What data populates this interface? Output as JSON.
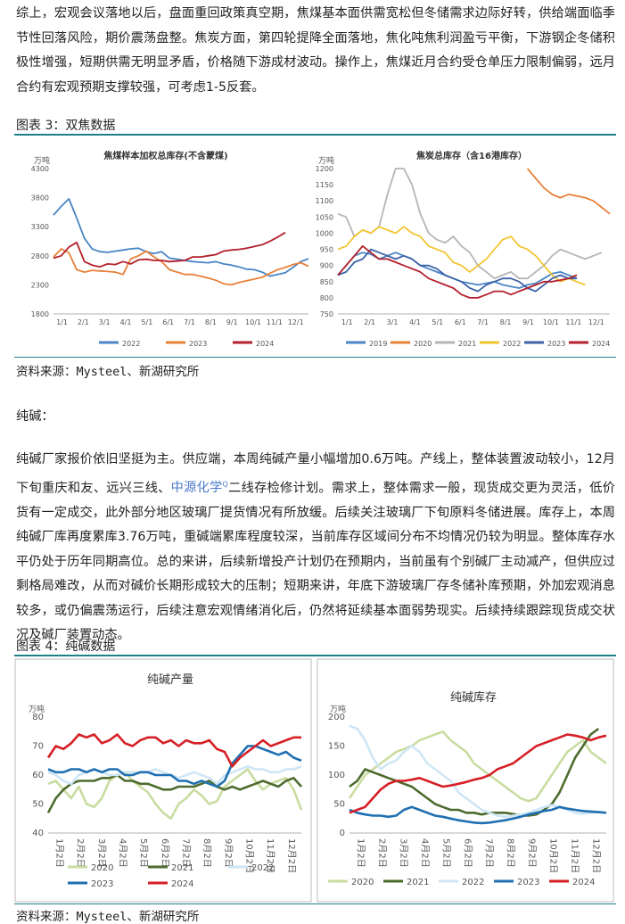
{
  "intro_paragraph": "综上，宏观会议落地以后，盘面重回政策真空期，焦煤基本面供需宽松但冬储需求边际好转，供给端面临季节性回落风险，期价震荡盘整。焦炭方面，第四轮提降全面落地，焦化吨焦利润盈亏平衡，下游钢企冬储积极性增强，短期供需无明显矛盾，价格随下游成材波动。操作上，焦煤近月合约受仓单压力限制偏弱，远月合约有宏观预期支撑较强，可考虑1-5反套。",
  "figure3": {
    "title": "图表 3：双焦数据",
    "source": "资料来源：Mysteel、新湖研究所"
  },
  "soda_label": "纯碱：",
  "soda_paragraph": {
    "part1": "纯碱厂家报价依旧坚挺为主。供应端，本周纯碱产量小幅增加0.6万吨。产线上，整体装置波动较小，12月下旬重庆和友、远兴三线、",
    "link": "中源化学",
    "link_sup": "Q",
    "part2": "二线存检修计划。需求上，整体需求一般，现货成交更为灵活，低价货有一定成交，此外部分地区玻璃厂提货情况有所放缓。后续关注玻璃厂下旬原料冬储进展。库存上，本周纯碱厂库再度累库3.76万吨，重碱端累库程度较深，当前库存区域间分布不均情况仍较为明显。整体库存水平仍处于历年同期高位。总的来讲，后续新增投产计划仍在预期内，当前虽有个别碱厂主动减产，但供应过剩格局难改，从而对碱价长期形成较大的压制；短期来讲，年底下游玻璃厂存冬储补库预期，外加宏观消息较多，或仍偏震荡运行，后续注意宏观情绪消化后，仍然将延续基本面弱势现实。后续持续跟踪现货成交状况及碱厂装置动态。"
  },
  "figure4": {
    "title": "图表 4：纯碱数据",
    "source": "资料来源：Mysteel、新湖研究所"
  },
  "colors": {
    "teal_rule": "#1f7f86",
    "y2019": "#4a86c5",
    "y2020": "#e8803a",
    "y2021": "#b5b5b5",
    "y2022": "#f2c530",
    "y2023": "#3d63a8",
    "y2024": "#b3202b"
  },
  "chart_data": [
    {
      "type": "line",
      "title": "焦煤样本加权总库存(不含蒙煤)",
      "ylabel": "万吨",
      "ylim": [
        1800,
        4300
      ],
      "yticks": [
        1800,
        2300,
        2800,
        3300,
        3800,
        4300
      ],
      "x_ticks": [
        "1/1",
        "2/1",
        "3/1",
        "4/1",
        "5/1",
        "6/1",
        "7/1",
        "8/1",
        "9/1",
        "10/1",
        "11/1",
        "12/1"
      ],
      "series": [
        {
          "name": "2022",
          "color": "#4a86c5",
          "values": [
            3500,
            3650,
            3780,
            3450,
            3100,
            2920,
            2870,
            2860,
            2880,
            2900,
            2920,
            2930,
            2870,
            2840,
            2870,
            2760,
            2740,
            2720,
            2700,
            2690,
            2680,
            2700,
            2660,
            2640,
            2610,
            2570,
            2560,
            2520,
            2450,
            2480,
            2510,
            2600,
            2700,
            2750
          ]
        },
        {
          "name": "2023",
          "color": "#e8803a",
          "values": [
            2780,
            2920,
            2850,
            2560,
            2520,
            2550,
            2540,
            2530,
            2520,
            2480,
            2750,
            2800,
            2880,
            2780,
            2700,
            2560,
            2520,
            2480,
            2480,
            2450,
            2420,
            2380,
            2320,
            2300,
            2340,
            2370,
            2400,
            2430,
            2500,
            2560,
            2600,
            2650,
            2680,
            2620
          ]
        },
        {
          "name": "2024",
          "color": "#b3202b",
          "values": [
            2760,
            2800,
            2950,
            3030,
            2700,
            2640,
            2610,
            2660,
            2650,
            2700,
            2660,
            2730,
            2740,
            2720,
            2720,
            2700,
            2710,
            2720,
            2780,
            2780,
            2800,
            2820,
            2880,
            2900,
            2910,
            2930,
            2960,
            2990,
            3050,
            3120,
            3200
          ]
        }
      ]
    },
    {
      "type": "line",
      "title": "焦炭总库存（含16港库存）",
      "ylabel": "万吨",
      "ylim": [
        750,
        1200
      ],
      "yticks": [
        750,
        800,
        850,
        900,
        950,
        1000,
        1050,
        1100,
        1150,
        1200
      ],
      "x_ticks": [
        "1/1",
        "2/1",
        "3/1",
        "4/1",
        "5/1",
        "6/1",
        "7/1",
        "8/1",
        "9/1",
        "10/1",
        "11/1",
        "12/1"
      ],
      "series": [
        {
          "name": "2019",
          "color": "#4a86c5",
          "values": [
            870,
            900,
            930,
            940,
            935,
            920,
            930,
            940,
            930,
            920,
            900,
            890,
            880,
            870,
            860,
            850,
            845,
            840,
            845,
            850,
            840,
            835,
            830,
            840,
            845,
            860,
            875,
            880,
            870,
            860
          ]
        },
        {
          "name": "2020",
          "color": "#e8803a",
          "values": [
            null,
            null,
            null,
            null,
            null,
            null,
            null,
            null,
            null,
            null,
            null,
            null,
            null,
            null,
            null,
            null,
            null,
            null,
            null,
            null,
            null,
            null,
            null,
            1200,
            1170,
            1140,
            1120,
            1110,
            1120,
            1115,
            1110,
            1100,
            1080,
            1060
          ]
        },
        {
          "name": "2021",
          "color": "#b5b5b5",
          "values": [
            1060,
            1050,
            990,
            1010,
            1000,
            1020,
            1120,
            1200,
            1200,
            1150,
            1060,
            1000,
            980,
            970,
            990,
            960,
            940,
            900,
            880,
            860,
            870,
            880,
            860,
            860,
            880,
            900,
            930,
            950,
            940,
            930,
            920,
            930,
            940
          ]
        },
        {
          "name": "2022",
          "color": "#f2c530",
          "values": [
            950,
            960,
            990,
            1010,
            1000,
            1020,
            1010,
            1000,
            1020,
            1000,
            990,
            960,
            950,
            940,
            910,
            900,
            880,
            900,
            920,
            950,
            980,
            990,
            960,
            950,
            930,
            900,
            870,
            850,
            860,
            850,
            840
          ]
        },
        {
          "name": "2023",
          "color": "#3d63a8",
          "values": [
            870,
            880,
            910,
            920,
            950,
            940,
            930,
            920,
            930,
            920,
            900,
            900,
            890,
            870,
            860,
            850,
            830,
            820,
            840,
            850,
            860,
            860,
            850,
            830,
            820,
            840,
            860,
            870,
            860,
            860
          ]
        },
        {
          "name": "2024",
          "color": "#b3202b",
          "values": [
            870,
            900,
            930,
            960,
            940,
            920,
            920,
            910,
            900,
            890,
            880,
            860,
            850,
            840,
            830,
            810,
            800,
            800,
            810,
            820,
            820,
            810,
            820,
            830,
            840,
            850,
            850,
            855,
            860,
            870
          ]
        }
      ]
    },
    {
      "type": "line",
      "title": "纯碱产量",
      "ylabel": "万吨",
      "ylim": [
        40,
        80
      ],
      "yticks": [
        40,
        50,
        60,
        70,
        80
      ],
      "x_ticks": [
        "1月2日",
        "2月2日",
        "3月2日",
        "4月2日",
        "5月2日",
        "6月2日",
        "7月2日",
        "8月2日",
        "9月2日",
        "10月2日",
        "11月2日",
        "12月2日"
      ],
      "series": [
        {
          "name": "2020",
          "color": "#c9dca0",
          "values": [
            57,
            58,
            55,
            52,
            56,
            50,
            49,
            52,
            58,
            60,
            61,
            58,
            56,
            54,
            50,
            47,
            45,
            50,
            52,
            55,
            53,
            50,
            51,
            56,
            58,
            60,
            62,
            58,
            55,
            57,
            58,
            59,
            55,
            48
          ]
        },
        {
          "name": "2021",
          "color": "#4e6b2e",
          "values": [
            47,
            52,
            55,
            57,
            58,
            58,
            58,
            59,
            59,
            60,
            58,
            58,
            57,
            57,
            56,
            55,
            55,
            56,
            56,
            56,
            57,
            58,
            56,
            55,
            56,
            55,
            56,
            57,
            58,
            57,
            56,
            58,
            59,
            56
          ]
        },
        {
          "name": "2022",
          "color": "#cfe6f5",
          "values": [
            61,
            60,
            58,
            57,
            60,
            61,
            62,
            61,
            60,
            60,
            61,
            61,
            61,
            61,
            62,
            61,
            60,
            59,
            60,
            61,
            60,
            59,
            57,
            60,
            61,
            62,
            63,
            62,
            62,
            61,
            61,
            62,
            62,
            63
          ]
        },
        {
          "name": "2023",
          "color": "#1f6fb2",
          "values": [
            62,
            61,
            61,
            62,
            62,
            61,
            62,
            61,
            62,
            62,
            60,
            60,
            61,
            61,
            60,
            60,
            60,
            58,
            58,
            57,
            58,
            57,
            56,
            58,
            64,
            67,
            70,
            70,
            69,
            68,
            67,
            68,
            66,
            65
          ]
        },
        {
          "name": "2024",
          "color": "#d61f26",
          "values": [
            66,
            70,
            69,
            71,
            74,
            73,
            74,
            71,
            72,
            74,
            71,
            70,
            72,
            73,
            73,
            71,
            72,
            70,
            72,
            71,
            71,
            72,
            69,
            68,
            63,
            66,
            68,
            70,
            72,
            70,
            71,
            72,
            73,
            73
          ]
        }
      ]
    },
    {
      "type": "line",
      "title": "纯碱库存",
      "ylabel": "万吨",
      "ylim": [
        0,
        200
      ],
      "yticks": [
        0,
        50,
        100,
        150,
        200
      ],
      "x_ticks": [
        "1月2日",
        "2月2日",
        "3月2日",
        "4月2日",
        "5月2日",
        "6月2日",
        "7月2日",
        "8月2日",
        "9月2日",
        "10月2日",
        "11月2日",
        "12月2日"
      ],
      "series": [
        {
          "name": "2020",
          "color": "#c9dca0",
          "values": [
            60,
            80,
            100,
            110,
            120,
            130,
            140,
            145,
            150,
            160,
            165,
            170,
            175,
            160,
            150,
            140,
            120,
            110,
            100,
            90,
            80,
            70,
            60,
            55,
            60,
            80,
            100,
            120,
            140,
            150,
            160,
            140,
            130,
            120
          ]
        },
        {
          "name": "2021",
          "color": "#4e6b2e",
          "values": [
            80,
            90,
            110,
            105,
            100,
            95,
            90,
            85,
            80,
            70,
            60,
            50,
            45,
            40,
            40,
            35,
            35,
            32,
            35,
            35,
            35,
            33,
            30,
            30,
            32,
            40,
            50,
            70,
            100,
            130,
            150,
            170,
            180
          ]
        },
        {
          "name": "2022",
          "color": "#cfe6f5",
          "values": [
            185,
            180,
            160,
            130,
            110,
            120,
            125,
            140,
            150,
            140,
            120,
            110,
            100,
            90,
            70,
            60,
            50,
            40,
            35,
            30,
            28,
            30,
            32,
            35,
            40,
            45,
            48,
            45,
            40,
            35,
            33,
            35,
            36,
            35
          ]
        },
        {
          "name": "2023",
          "color": "#1f6fb2",
          "values": [
            40,
            35,
            32,
            30,
            30,
            28,
            30,
            40,
            45,
            40,
            35,
            30,
            28,
            25,
            22,
            20,
            18,
            17,
            18,
            20,
            22,
            25,
            28,
            32,
            35,
            38,
            40,
            45,
            42,
            40,
            38,
            37,
            36,
            35
          ]
        },
        {
          "name": "2024",
          "color": "#d61f26",
          "values": [
            35,
            40,
            45,
            60,
            75,
            85,
            90,
            90,
            92,
            95,
            90,
            85,
            80,
            82,
            85,
            88,
            92,
            95,
            100,
            110,
            115,
            120,
            130,
            140,
            150,
            155,
            160,
            165,
            170,
            168,
            165,
            160,
            165,
            168
          ]
        }
      ]
    }
  ],
  "legends": {
    "coal": [
      "2022",
      "2023",
      "2024"
    ],
    "coke": [
      "2019",
      "2020",
      "2021",
      "2022",
      "2023",
      "2024"
    ],
    "soda_row1": [
      "2020",
      "2021",
      "2022"
    ],
    "soda_row2": [
      "2023",
      "2024"
    ]
  }
}
